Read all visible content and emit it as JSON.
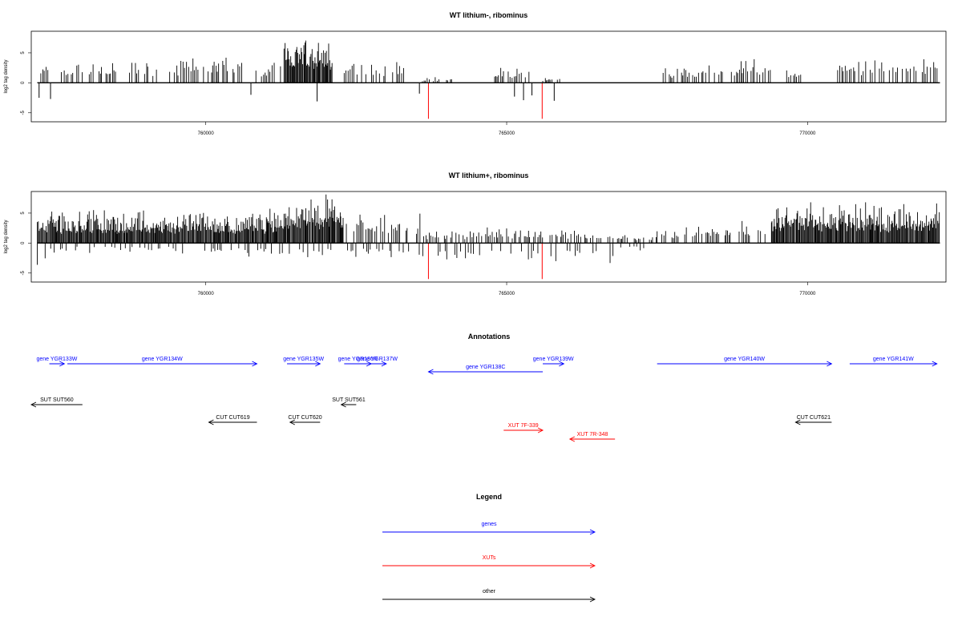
{
  "chart_data": [
    {
      "type": "bar",
      "title": "WT lithium-, ribominus",
      "ylabel": "log2 tag density",
      "xlim": [
        757100,
        772300
      ],
      "ylim": [
        -6.5,
        8.6
      ],
      "xticks": [
        760000,
        765000,
        770000
      ],
      "yticks": [
        -5,
        0,
        5
      ],
      "grid": false,
      "dense_ranges": [
        [
          761300,
          762100
        ]
      ],
      "up_ranges": [
        [
          757200,
          757400
        ],
        [
          757600,
          758500
        ],
        [
          758700,
          759200
        ],
        [
          759400,
          760600
        ],
        [
          760800,
          761300
        ],
        [
          761300,
          762100
        ],
        [
          762300,
          763300
        ],
        [
          763600,
          763900
        ],
        [
          764000,
          764100
        ],
        [
          764800,
          765400
        ],
        [
          765600,
          765900
        ],
        [
          767600,
          768600
        ],
        [
          768700,
          769400
        ],
        [
          769600,
          769900
        ],
        [
          770500,
          772200
        ]
      ],
      "up_max": [
        3.2,
        3.8,
        3.8,
        4.8,
        4.2,
        8.2,
        4.0,
        1.0,
        1.0,
        2.8,
        1.0,
        3.0,
        4.4,
        3.2,
        4.9
      ],
      "down": [
        {
          "x": 757230,
          "y": -2.5,
          "color": "black"
        },
        {
          "x": 757420,
          "y": -2.7,
          "color": "black"
        },
        {
          "x": 760750,
          "y": -2.0,
          "color": "black"
        },
        {
          "x": 761850,
          "y": -3.1,
          "color": "black"
        },
        {
          "x": 763550,
          "y": -1.8,
          "color": "black"
        },
        {
          "x": 763700,
          "y": -6.0,
          "color": "red"
        },
        {
          "x": 765130,
          "y": -2.3,
          "color": "black"
        },
        {
          "x": 765280,
          "y": -2.9,
          "color": "black"
        },
        {
          "x": 765420,
          "y": -2.1,
          "color": "black"
        },
        {
          "x": 765590,
          "y": -6.0,
          "color": "red"
        },
        {
          "x": 765790,
          "y": -3.0,
          "color": "black"
        }
      ]
    },
    {
      "type": "bar",
      "title": "WT lithium+, ribominus",
      "ylabel": "log2 tag density",
      "xlim": [
        757100,
        772300
      ],
      "ylim": [
        -6.5,
        8.6
      ],
      "xticks": [
        760000,
        765000,
        770000
      ],
      "yticks": [
        -5,
        0,
        5
      ],
      "grid": false,
      "dense_ranges": [
        [
          757200,
          763500
        ],
        [
          769400,
          772200
        ]
      ],
      "up_ranges": [
        [
          757200,
          759000
        ],
        [
          759000,
          761300
        ],
        [
          761300,
          762300
        ],
        [
          762300,
          763600
        ],
        [
          763600,
          764500
        ],
        [
          764500,
          765500
        ],
        [
          765500,
          766500
        ],
        [
          766500,
          767500
        ],
        [
          767500,
          768600
        ],
        [
          768600,
          769400
        ],
        [
          769400,
          772200
        ]
      ],
      "up_max": [
        5.5,
        5.8,
        8.5,
        6.0,
        2.4,
        2.6,
        2.4,
        1.5,
        3.0,
        4.0,
        6.8
      ],
      "down_ranges": [
        [
          757200,
          757400
        ],
        [
          757400,
          759500
        ],
        [
          759500,
          763400
        ],
        [
          763500,
          766800
        ],
        [
          766800,
          767300
        ]
      ],
      "down_max": [
        -6.0,
        -2.0,
        -2.8,
        -4.2,
        -1.8
      ],
      "down": [
        {
          "x": 763700,
          "y": -6.0,
          "color": "red"
        },
        {
          "x": 765590,
          "y": -6.0,
          "color": "red"
        }
      ]
    }
  ],
  "annotations": {
    "title": "Annotations",
    "features": [
      {
        "label": "gene YGR133W",
        "x1": 757400,
        "x2": 757650,
        "row": "gene",
        "color": "#0000ff",
        "dir": "+"
      },
      {
        "label": "gene YGR134W",
        "x1": 757700,
        "x2": 760850,
        "row": "gene",
        "color": "#0000ff",
        "dir": "+"
      },
      {
        "label": "gene YGR135W",
        "x1": 761350,
        "x2": 761900,
        "row": "gene",
        "color": "#0000ff",
        "dir": "+"
      },
      {
        "label": "gene YGR136R",
        "x1": 762300,
        "x2": 762750,
        "row": "gene",
        "color": "#0000ff",
        "dir": "+"
      },
      {
        "label": "gene YGR137W",
        "x1": 762700,
        "x2": 763000,
        "row": "gene",
        "color": "#0000ff",
        "dir": "+"
      },
      {
        "label": "gene YGR138C",
        "x1": 763700,
        "x2": 765600,
        "row": "gene-low",
        "color": "#0000ff",
        "dir": "-"
      },
      {
        "label": "gene YGR139W",
        "x1": 765600,
        "x2": 765950,
        "row": "gene",
        "color": "#0000ff",
        "dir": "+"
      },
      {
        "label": "gene YGR140W",
        "x1": 767500,
        "x2": 770400,
        "row": "gene",
        "color": "#0000ff",
        "dir": "+"
      },
      {
        "label": "gene YGR141W",
        "x1": 770700,
        "x2": 772150,
        "row": "gene",
        "color": "#0000ff",
        "dir": "+"
      },
      {
        "label": "SUT SUT560",
        "x1": 757100,
        "x2": 757950,
        "row": "sut",
        "color": "#000000",
        "dir": "-"
      },
      {
        "label": "SUT SUT561",
        "x1": 762250,
        "x2": 762500,
        "row": "sut",
        "color": "#000000",
        "dir": "-"
      },
      {
        "label": "CUT CUT619",
        "x1": 760050,
        "x2": 760850,
        "row": "cut",
        "color": "#000000",
        "dir": "-"
      },
      {
        "label": "CUT CUT620",
        "x1": 761400,
        "x2": 761900,
        "row": "cut",
        "color": "#000000",
        "dir": "-"
      },
      {
        "label": "CUT CUT621",
        "x1": 769800,
        "x2": 770400,
        "row": "cut",
        "color": "#000000",
        "dir": "-"
      },
      {
        "label": "XUT 7F-339",
        "x1": 764950,
        "x2": 765600,
        "row": "xut1",
        "color": "#ff0000",
        "dir": "+"
      },
      {
        "label": "XUT 7R-348",
        "x1": 766050,
        "x2": 766800,
        "row": "xut2",
        "color": "#ff0000",
        "dir": "-"
      }
    ]
  },
  "legend": {
    "title": "Legend",
    "items": [
      {
        "label": "genes",
        "color": "#0000ff"
      },
      {
        "label": "XUTs",
        "color": "#ff0000"
      },
      {
        "label": "other",
        "color": "#000000"
      }
    ]
  }
}
